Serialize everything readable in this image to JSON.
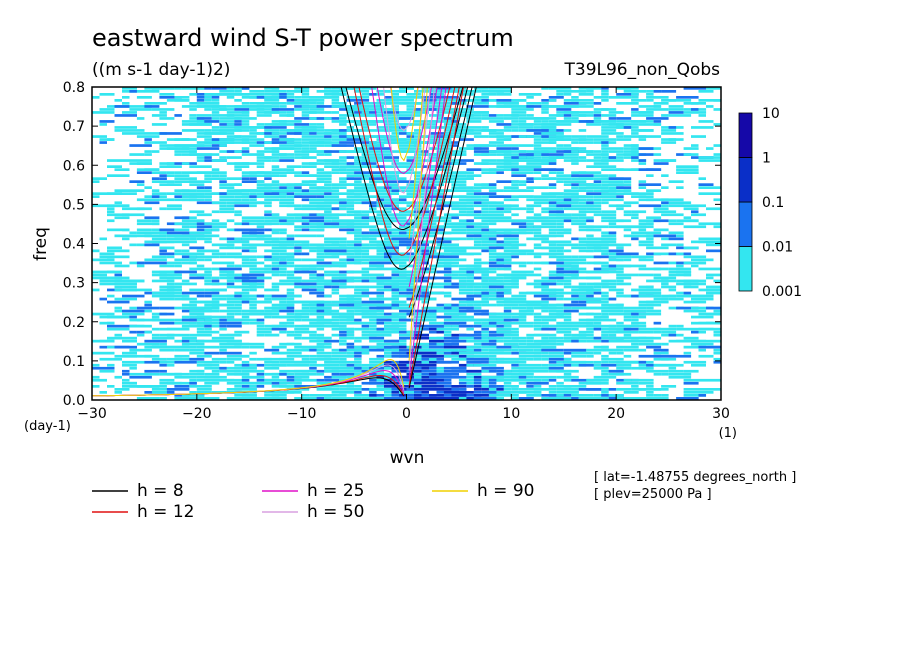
{
  "chart_data": {
    "type": "heatmap",
    "title": "eastward wind S-T power spectrum",
    "subtitle": "((m s-1 day-1)2)",
    "run_label": "T39L96_non_Qobs",
    "xlabel": "wvn",
    "ylabel": "freq",
    "x_unit": "(1)",
    "y_unit": "(day-1)",
    "xlim": [
      -30,
      30
    ],
    "ylim": [
      0,
      0.8
    ],
    "x_ticks": [
      -30,
      -20,
      -10,
      0,
      10,
      20,
      30
    ],
    "y_ticks": [
      0.0,
      0.1,
      0.2,
      0.3,
      0.4,
      0.5,
      0.6,
      0.7,
      0.8
    ],
    "x_tick_labels": [
      "−30",
      "−20",
      "−10",
      "0",
      "10",
      "20",
      "30"
    ],
    "y_tick_labels": [
      "0.0",
      "0.1",
      "0.2",
      "0.3",
      "0.4",
      "0.5",
      "0.6",
      "0.7",
      "0.8"
    ],
    "colorbar": {
      "levels": [
        "0.001",
        "0.01",
        "0.1",
        "1",
        "10"
      ],
      "colors": [
        "#33e6f0",
        "#1a73f0",
        "#0a2fc8",
        "#1508a8",
        "#4a1aa8"
      ]
    },
    "dispersion_curves": [
      {
        "name": "h =  8",
        "color": "#000000"
      },
      {
        "name": "h = 12",
        "color": "#e01010"
      },
      {
        "name": "h = 25",
        "color": "#e010c8"
      },
      {
        "name": "h = 50",
        "color": "#d8a0e0"
      },
      {
        "name": "h = 90",
        "color": "#f0d000"
      }
    ],
    "annotations": [
      "[ lat=-1.48755 degrees_north ]",
      "[ plev=25000 Pa ]"
    ]
  }
}
